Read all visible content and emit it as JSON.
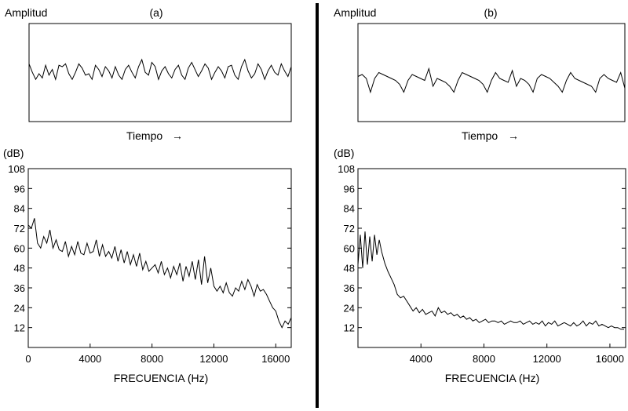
{
  "panels": [
    {
      "label": "(a)",
      "time_ylabel": "Amplitud",
      "time_xlabel": "Tiempo",
      "arrow": "→",
      "spec_ylabel": "(dB)",
      "spec_xlabel": "FRECUENCIA (Hz)"
    },
    {
      "label": "(b)",
      "time_ylabel": "Amplitud",
      "time_xlabel": "Tiempo",
      "arrow": "→",
      "spec_ylabel": "(dB)",
      "spec_xlabel": "FRECUENCIA (Hz)"
    }
  ],
  "chart_data": [
    {
      "panel": "(a)",
      "kind": "waveform",
      "type": "line",
      "xlabel": "Tiempo",
      "ylabel": "Amplitud",
      "y": [
        0.2,
        -0.4,
        -0.9,
        -0.5,
        -0.8,
        0.1,
        -0.6,
        -0.2,
        -0.9,
        0.1,
        0.0,
        0.2,
        -0.5,
        -0.9,
        -0.4,
        0.2,
        -0.1,
        -0.6,
        -0.5,
        -0.9,
        0.1,
        -0.2,
        -0.7,
        0.0,
        -0.3,
        -0.8,
        0.0,
        -0.6,
        -0.9,
        -0.2,
        0.1,
        -0.4,
        -0.8,
        0.0,
        0.5,
        -0.4,
        -0.6,
        0.3,
        0.0,
        -0.9,
        -0.3,
        0.0,
        -0.5,
        -0.8,
        -0.2,
        0.1,
        -0.6,
        -0.9,
        -0.1,
        0.3,
        -0.2,
        -0.7,
        -0.3,
        0.2,
        -0.1,
        -0.9,
        -0.4,
        0.0,
        -0.3,
        -0.8,
        0.0,
        0.1,
        -0.6,
        -0.9,
        0.0,
        0.5,
        -0.3,
        -0.8,
        -0.5,
        0.2,
        -0.2,
        -0.9,
        -0.3,
        0.1,
        -0.4,
        -0.6,
        0.2,
        -0.3,
        -0.7,
        0.0
      ]
    },
    {
      "panel": "(b)",
      "kind": "waveform",
      "type": "line",
      "xlabel": "Tiempo",
      "ylabel": "Amplitud",
      "y": [
        -0.1,
        0.0,
        -0.2,
        -0.9,
        -0.2,
        0.1,
        0.0,
        -0.1,
        -0.2,
        -0.3,
        -0.5,
        -0.9,
        -0.3,
        0.0,
        -0.1,
        -0.2,
        -0.3,
        0.3,
        -0.6,
        -0.2,
        -0.3,
        -0.4,
        -0.6,
        -0.9,
        -0.3,
        0.1,
        0.0,
        -0.1,
        -0.2,
        -0.3,
        -0.5,
        -0.9,
        -0.3,
        0.1,
        -0.2,
        -0.3,
        -0.4,
        0.2,
        -0.6,
        -0.2,
        -0.3,
        -0.5,
        -0.9,
        -0.2,
        0.0,
        -0.1,
        -0.2,
        -0.4,
        -0.6,
        -0.9,
        -0.3,
        0.1,
        -0.2,
        -0.3,
        -0.4,
        -0.5,
        -0.6,
        -0.9,
        -0.2,
        0.0,
        -0.2,
        -0.3,
        -0.4,
        0.1,
        -0.7
      ]
    },
    {
      "panel": "(a)",
      "kind": "spectrum",
      "type": "line",
      "xlabel": "FRECUENCIA (Hz)",
      "ylabel": "(dB)",
      "xlim": [
        0,
        17000
      ],
      "ylim": [
        0,
        108
      ],
      "xticks": [
        0,
        4000,
        8000,
        12000,
        16000
      ],
      "yticks": [
        12,
        24,
        36,
        48,
        60,
        72,
        84,
        96,
        108
      ],
      "grid": false,
      "x": [
        0,
        200,
        400,
        600,
        800,
        1000,
        1200,
        1400,
        1600,
        1800,
        2000,
        2200,
        2400,
        2600,
        2800,
        3000,
        3200,
        3400,
        3600,
        3800,
        4000,
        4200,
        4400,
        4600,
        4800,
        5000,
        5200,
        5400,
        5600,
        5800,
        6000,
        6200,
        6400,
        6600,
        6800,
        7000,
        7200,
        7400,
        7600,
        7800,
        8000,
        8200,
        8400,
        8600,
        8800,
        9000,
        9200,
        9400,
        9600,
        9800,
        10000,
        10200,
        10400,
        10600,
        10800,
        11000,
        11200,
        11400,
        11600,
        11800,
        12000,
        12200,
        12400,
        12600,
        12800,
        13000,
        13200,
        13400,
        13600,
        13800,
        14000,
        14200,
        14400,
        14600,
        14800,
        15000,
        15200,
        15400,
        15600,
        15800,
        16000,
        16200,
        16400,
        16600,
        16800,
        17000
      ],
      "y": [
        74,
        72,
        78,
        63,
        60,
        67,
        63,
        71,
        60,
        65,
        59,
        58,
        64,
        55,
        61,
        56,
        64,
        57,
        56,
        63,
        57,
        58,
        65,
        55,
        62,
        55,
        58,
        54,
        61,
        52,
        59,
        51,
        58,
        50,
        56,
        49,
        57,
        47,
        52,
        46,
        48,
        50,
        45,
        52,
        44,
        48,
        42,
        49,
        44,
        51,
        40,
        49,
        43,
        52,
        41,
        53,
        38,
        55,
        39,
        48,
        37,
        34,
        37,
        33,
        39,
        33,
        31,
        36,
        34,
        40,
        35,
        41,
        37,
        31,
        38,
        34,
        35,
        32,
        28,
        24,
        22,
        16,
        12,
        16,
        14,
        18
      ]
    },
    {
      "panel": "(b)",
      "kind": "spectrum",
      "type": "line",
      "xlabel": "FRECUENCIA (Hz)",
      "ylabel": "(dB)",
      "xlim": [
        0,
        17000
      ],
      "ylim": [
        0,
        108
      ],
      "xticks": [
        4000,
        8000,
        12000,
        16000
      ],
      "yticks": [
        12,
        24,
        36,
        48,
        60,
        72,
        84,
        96,
        108
      ],
      "grid": false,
      "x": [
        0,
        150,
        300,
        450,
        600,
        750,
        900,
        1050,
        1200,
        1350,
        1500,
        1700,
        1900,
        2100,
        2300,
        2500,
        2700,
        2900,
        3100,
        3300,
        3500,
        3700,
        3900,
        4100,
        4300,
        4500,
        4700,
        4900,
        5100,
        5300,
        5500,
        5700,
        5900,
        6100,
        6300,
        6500,
        6700,
        6900,
        7100,
        7300,
        7500,
        7700,
        7900,
        8100,
        8300,
        8500,
        8700,
        8900,
        9100,
        9300,
        9500,
        9700,
        9900,
        10100,
        10300,
        10500,
        10700,
        10900,
        11100,
        11300,
        11500,
        11700,
        11900,
        12100,
        12300,
        12500,
        12700,
        12900,
        13100,
        13300,
        13500,
        13700,
        13900,
        14100,
        14300,
        14500,
        14700,
        14900,
        15100,
        15300,
        15500,
        15700,
        15900,
        16100,
        16300,
        16500,
        16700,
        16900
      ],
      "y": [
        50,
        68,
        48,
        70,
        50,
        67,
        52,
        68,
        56,
        65,
        58,
        51,
        46,
        42,
        38,
        32,
        30,
        31,
        28,
        25,
        22,
        24,
        21,
        23,
        20,
        21,
        22,
        19,
        24,
        21,
        22,
        20,
        21,
        19,
        20,
        18,
        19,
        17,
        18,
        16,
        17,
        15,
        16,
        17,
        15,
        16,
        16,
        15,
        16,
        14,
        15,
        16,
        15,
        15,
        16,
        14,
        15,
        16,
        14,
        15,
        14,
        16,
        13,
        15,
        14,
        16,
        13,
        14,
        15,
        14,
        13,
        15,
        13,
        14,
        16,
        13,
        15,
        14,
        16,
        13,
        14,
        13,
        12,
        13,
        12,
        12,
        11,
        11
      ]
    }
  ]
}
